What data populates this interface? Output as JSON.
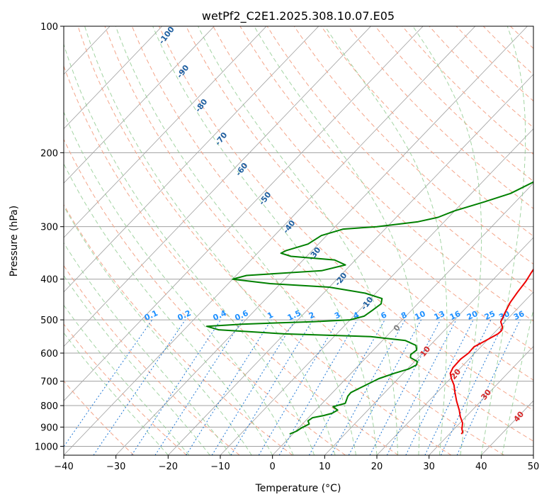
{
  "chart_data": {
    "type": "line",
    "title": "wetPf2_C2E1.2025.308.10.07.E05",
    "xlabel": "Temperature (°C)",
    "ylabel": "Pressure (hPa)",
    "xlim": [
      -40,
      50
    ],
    "ylim": [
      1050,
      100
    ],
    "y_scale": "log",
    "x_ticks": [
      "−40",
      "−30",
      "−20",
      "−10",
      "0",
      "10",
      "20",
      "30",
      "40",
      "50"
    ],
    "x_tick_values": [
      -40,
      -30,
      -20,
      -10,
      0,
      10,
      20,
      30,
      40,
      50
    ],
    "y_ticks": [
      "100",
      "200",
      "300",
      "400",
      "500",
      "600",
      "700",
      "800",
      "900",
      "1000"
    ],
    "y_tick_values": [
      100,
      200,
      300,
      400,
      500,
      600,
      700,
      800,
      900,
      1000
    ],
    "colors": {
      "temperature": "#ee0000",
      "dewpoint": "#008000",
      "dry_adiabat": "#f4a58a",
      "moist_adiabat": "#8cc98c",
      "mixing_ratio": "#1f77d4",
      "isotherm_grid": "#a0a0a0",
      "dry_label": "#1f5fa0",
      "moist_label": "#d62728",
      "mixing_label": "#1e90ff",
      "zero_label": "#808080"
    },
    "series": [
      {
        "name": "Temperature",
        "color": "#ee0000",
        "points": [
          [
            32.3,
            935
          ],
          [
            32.2,
            925
          ],
          [
            31.5,
            910
          ],
          [
            30.5,
            880
          ],
          [
            28.9,
            850
          ],
          [
            27.5,
            820
          ],
          [
            25.3,
            780
          ],
          [
            23.2,
            740
          ],
          [
            21.9,
            715
          ],
          [
            20.2,
            690
          ],
          [
            19.0,
            670
          ],
          [
            18.5,
            650
          ],
          [
            18.4,
            620
          ],
          [
            18.8,
            600
          ],
          [
            18.7,
            580
          ],
          [
            19.8,
            560
          ],
          [
            20.9,
            540
          ],
          [
            21.0,
            530
          ],
          [
            20.5,
            520
          ],
          [
            19.2,
            505
          ],
          [
            18.9,
            495
          ],
          [
            18.5,
            485
          ],
          [
            17.5,
            455
          ],
          [
            17.0,
            430
          ],
          [
            16.6,
            405
          ],
          [
            16.0,
            385
          ],
          [
            15.5,
            365
          ],
          [
            14.8,
            345
          ],
          [
            14.2,
            320
          ],
          [
            12.5,
            295
          ],
          [
            10.0,
            265
          ],
          [
            7.8,
            240
          ],
          [
            5.5,
            215
          ],
          [
            3.8,
            190
          ],
          [
            2.5,
            170
          ],
          [
            1.5,
            150
          ],
          [
            0.7,
            135
          ],
          [
            0.4,
            125
          ],
          [
            1.2,
            120
          ],
          [
            2.1,
            115
          ],
          [
            2.5,
            110
          ],
          [
            2.3,
            105
          ],
          [
            1.4,
            100
          ]
        ]
      },
      {
        "name": "Dewpoint",
        "color": "#008000",
        "points": [
          [
            -0.6,
            935
          ],
          [
            0.2,
            920
          ],
          [
            0.5,
            905
          ],
          [
            1.3,
            885
          ],
          [
            0.5,
            870
          ],
          [
            0.8,
            855
          ],
          [
            2.5,
            845
          ],
          [
            3.7,
            835
          ],
          [
            4.2,
            820
          ],
          [
            2.7,
            805
          ],
          [
            4.4,
            790
          ],
          [
            3.6,
            760
          ],
          [
            3.5,
            745
          ],
          [
            5.0,
            715
          ],
          [
            6.3,
            690
          ],
          [
            8.3,
            670
          ],
          [
            10.2,
            655
          ],
          [
            11.0,
            640
          ],
          [
            10.5,
            628
          ],
          [
            8.5,
            615
          ],
          [
            8.0,
            605
          ],
          [
            8.3,
            590
          ],
          [
            7.3,
            575
          ],
          [
            4.4,
            560
          ],
          [
            -3.0,
            548
          ],
          [
            -20.0,
            540
          ],
          [
            -33.4,
            528
          ],
          [
            -36.3,
            518
          ],
          [
            -30.0,
            512
          ],
          [
            -16.8,
            505
          ],
          [
            -10.0,
            500
          ],
          [
            -8.0,
            490
          ],
          [
            -7.5,
            475
          ],
          [
            -7.0,
            458
          ],
          [
            -7.8,
            445
          ],
          [
            -12.0,
            432
          ],
          [
            -20.0,
            418
          ],
          [
            -32.0,
            410
          ],
          [
            -40.0,
            400
          ],
          [
            -38.0,
            392
          ],
          [
            -24.5,
            382
          ],
          [
            -21.0,
            370
          ],
          [
            -24.0,
            360
          ],
          [
            -33.0,
            353
          ],
          [
            -35.5,
            347
          ],
          [
            -35.0,
            342
          ],
          [
            -32.0,
            330
          ],
          [
            -31.0,
            315
          ],
          [
            -28.0,
            304
          ],
          [
            -22.0,
            300
          ],
          [
            -15.0,
            292
          ],
          [
            -12.0,
            285
          ],
          [
            -10.0,
            275
          ],
          [
            -6.0,
            262
          ],
          [
            -2.5,
            250
          ],
          [
            -0.2,
            235
          ],
          [
            0.5,
            222
          ],
          [
            0.6,
            212
          ],
          [
            1.0,
            203
          ],
          [
            1.5,
            190
          ],
          [
            2.0,
            178
          ],
          [
            3.0,
            164
          ],
          [
            3.5,
            150
          ],
          [
            4.5,
            136
          ],
          [
            5.5,
            124
          ],
          [
            6.0,
            117
          ],
          [
            6.5,
            112
          ],
          [
            8.0,
            107
          ],
          [
            10.0,
            103
          ],
          [
            11.6,
            100
          ]
        ]
      }
    ],
    "dry_adiabat_labels": [
      "-100",
      "-90",
      "-80",
      "-70",
      "-60",
      "-50",
      "-40",
      "-30",
      "-20",
      "-10"
    ],
    "moist_adiabat_labels": [
      "0",
      "10",
      "20",
      "30",
      "40"
    ],
    "mixing_ratio_labels": [
      "0.1",
      "0.2",
      "0.4",
      "0.6",
      "1",
      "1.5",
      "2",
      "3",
      "4",
      "6",
      "8",
      "10",
      "13",
      "16",
      "20",
      "25",
      "30",
      "36"
    ]
  }
}
